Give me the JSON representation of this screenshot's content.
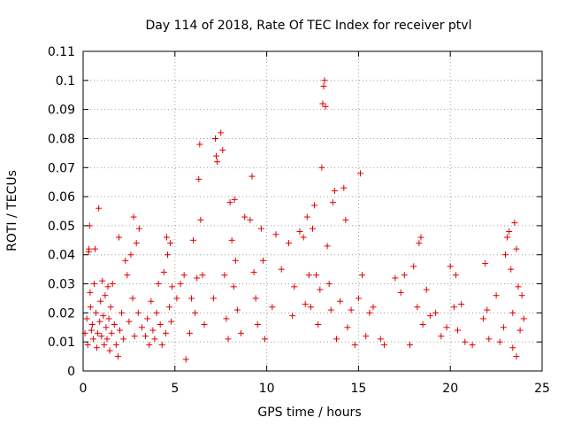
{
  "chart_data": {
    "type": "scatter",
    "title": "Day 114 of 2018, Rate Of TEC Index for receiver ptvl",
    "xlabel": "GPS time / hours",
    "ylabel": "ROTI / TECUs",
    "xlim": [
      0,
      25
    ],
    "ylim": [
      0,
      0.11
    ],
    "xticks": [
      0,
      5,
      10,
      15,
      20,
      25
    ],
    "xtick_labels": [
      "0",
      "5",
      "10",
      "15",
      "20",
      "25"
    ],
    "yticks": [
      0,
      0.01,
      0.02,
      0.03,
      0.04,
      0.05,
      0.06,
      0.07,
      0.08,
      0.09,
      0.1,
      0.11
    ],
    "ytick_labels": [
      "0",
      "0.01",
      "0.02",
      "0.03",
      "0.04",
      "0.05",
      "0.06",
      "0.07",
      "0.08",
      "0.09",
      "0.1",
      "0.11"
    ],
    "grid": true,
    "marker": "+",
    "color": "#e00000",
    "series": [
      {
        "name": "ROTI",
        "points": [
          [
            0.1,
            0.013
          ],
          [
            0.2,
            0.018
          ],
          [
            0.25,
            0.009
          ],
          [
            0.3,
            0.041
          ],
          [
            0.32,
            0.042
          ],
          [
            0.35,
            0.05
          ],
          [
            0.38,
            0.027
          ],
          [
            0.4,
            0.022
          ],
          [
            0.45,
            0.014
          ],
          [
            0.5,
            0.016
          ],
          [
            0.55,
            0.011
          ],
          [
            0.6,
            0.03
          ],
          [
            0.65,
            0.042
          ],
          [
            0.7,
            0.02
          ],
          [
            0.75,
            0.008
          ],
          [
            0.8,
            0.013
          ],
          [
            0.85,
            0.056
          ],
          [
            0.9,
            0.017
          ],
          [
            0.95,
            0.024
          ],
          [
            1.0,
            0.012
          ],
          [
            1.05,
            0.031
          ],
          [
            1.1,
            0.019
          ],
          [
            1.15,
            0.009
          ],
          [
            1.2,
            0.026
          ],
          [
            1.25,
            0.015
          ],
          [
            1.3,
            0.011
          ],
          [
            1.35,
            0.029
          ],
          [
            1.4,
            0.018
          ],
          [
            1.45,
            0.007
          ],
          [
            1.5,
            0.022
          ],
          [
            1.55,
            0.013
          ],
          [
            1.6,
            0.03
          ],
          [
            1.7,
            0.016
          ],
          [
            1.8,
            0.009
          ],
          [
            1.9,
            0.005
          ],
          [
            1.95,
            0.046
          ],
          [
            2.0,
            0.014
          ],
          [
            2.1,
            0.02
          ],
          [
            2.2,
            0.011
          ],
          [
            2.3,
            0.038
          ],
          [
            2.4,
            0.033
          ],
          [
            2.5,
            0.017
          ],
          [
            2.6,
            0.04
          ],
          [
            2.7,
            0.025
          ],
          [
            2.75,
            0.053
          ],
          [
            2.8,
            0.012
          ],
          [
            2.9,
            0.044
          ],
          [
            3.0,
            0.02
          ],
          [
            3.05,
            0.049
          ],
          [
            3.2,
            0.015
          ],
          [
            3.4,
            0.012
          ],
          [
            3.5,
            0.018
          ],
          [
            3.6,
            0.009
          ],
          [
            3.7,
            0.024
          ],
          [
            3.8,
            0.014
          ],
          [
            3.9,
            0.011
          ],
          [
            4.0,
            0.02
          ],
          [
            4.1,
            0.03
          ],
          [
            4.2,
            0.016
          ],
          [
            4.3,
            0.009
          ],
          [
            4.4,
            0.034
          ],
          [
            4.5,
            0.013
          ],
          [
            4.55,
            0.046
          ],
          [
            4.6,
            0.04
          ],
          [
            4.7,
            0.022
          ],
          [
            4.75,
            0.044
          ],
          [
            4.8,
            0.017
          ],
          [
            4.85,
            0.029
          ],
          [
            5.1,
            0.025
          ],
          [
            5.3,
            0.03
          ],
          [
            5.5,
            0.033
          ],
          [
            5.6,
            0.004
          ],
          [
            5.8,
            0.013
          ],
          [
            5.9,
            0.025
          ],
          [
            6.0,
            0.045
          ],
          [
            6.1,
            0.02
          ],
          [
            6.2,
            0.032
          ],
          [
            6.3,
            0.066
          ],
          [
            6.35,
            0.078
          ],
          [
            6.4,
            0.052
          ],
          [
            6.5,
            0.033
          ],
          [
            6.6,
            0.016
          ],
          [
            7.1,
            0.025
          ],
          [
            7.2,
            0.08
          ],
          [
            7.25,
            0.074
          ],
          [
            7.3,
            0.072
          ],
          [
            7.5,
            0.082
          ],
          [
            7.6,
            0.076
          ],
          [
            7.7,
            0.033
          ],
          [
            7.8,
            0.018
          ],
          [
            7.9,
            0.011
          ],
          [
            8.0,
            0.058
          ],
          [
            8.1,
            0.045
          ],
          [
            8.2,
            0.029
          ],
          [
            8.25,
            0.059
          ],
          [
            8.3,
            0.038
          ],
          [
            8.4,
            0.021
          ],
          [
            8.6,
            0.013
          ],
          [
            8.8,
            0.053
          ],
          [
            9.1,
            0.052
          ],
          [
            9.2,
            0.067
          ],
          [
            9.3,
            0.034
          ],
          [
            9.4,
            0.025
          ],
          [
            9.5,
            0.016
          ],
          [
            9.7,
            0.049
          ],
          [
            9.8,
            0.038
          ],
          [
            9.9,
            0.011
          ],
          [
            10.3,
            0.022
          ],
          [
            10.5,
            0.047
          ],
          [
            10.8,
            0.035
          ],
          [
            11.2,
            0.044
          ],
          [
            11.4,
            0.019
          ],
          [
            11.5,
            0.029
          ],
          [
            11.8,
            0.048
          ],
          [
            12.0,
            0.046
          ],
          [
            12.1,
            0.023
          ],
          [
            12.2,
            0.053
          ],
          [
            12.3,
            0.033
          ],
          [
            12.4,
            0.022
          ],
          [
            12.5,
            0.049
          ],
          [
            12.6,
            0.057
          ],
          [
            12.7,
            0.033
          ],
          [
            12.8,
            0.016
          ],
          [
            12.9,
            0.028
          ],
          [
            13.0,
            0.07
          ],
          [
            13.05,
            0.092
          ],
          [
            13.1,
            0.098
          ],
          [
            13.15,
            0.1
          ],
          [
            13.2,
            0.091
          ],
          [
            13.3,
            0.043
          ],
          [
            13.4,
            0.03
          ],
          [
            13.5,
            0.021
          ],
          [
            13.6,
            0.058
          ],
          [
            13.7,
            0.062
          ],
          [
            13.8,
            0.011
          ],
          [
            14.0,
            0.024
          ],
          [
            14.2,
            0.063
          ],
          [
            14.3,
            0.052
          ],
          [
            14.4,
            0.015
          ],
          [
            14.6,
            0.021
          ],
          [
            14.8,
            0.009
          ],
          [
            15.0,
            0.025
          ],
          [
            15.1,
            0.068
          ],
          [
            15.2,
            0.033
          ],
          [
            15.4,
            0.012
          ],
          [
            15.6,
            0.02
          ],
          [
            15.8,
            0.022
          ],
          [
            16.2,
            0.011
          ],
          [
            16.4,
            0.009
          ],
          [
            17.0,
            0.032
          ],
          [
            17.3,
            0.027
          ],
          [
            17.5,
            0.033
          ],
          [
            17.8,
            0.009
          ],
          [
            18.0,
            0.036
          ],
          [
            18.2,
            0.022
          ],
          [
            18.3,
            0.044
          ],
          [
            18.4,
            0.046
          ],
          [
            18.5,
            0.016
          ],
          [
            18.7,
            0.028
          ],
          [
            18.9,
            0.019
          ],
          [
            19.2,
            0.02
          ],
          [
            19.5,
            0.012
          ],
          [
            19.8,
            0.015
          ],
          [
            20.0,
            0.036
          ],
          [
            20.2,
            0.022
          ],
          [
            20.3,
            0.033
          ],
          [
            20.4,
            0.014
          ],
          [
            20.6,
            0.023
          ],
          [
            20.8,
            0.01
          ],
          [
            21.2,
            0.009
          ],
          [
            21.8,
            0.018
          ],
          [
            21.9,
            0.037
          ],
          [
            22.0,
            0.021
          ],
          [
            22.1,
            0.011
          ],
          [
            22.5,
            0.026
          ],
          [
            22.7,
            0.01
          ],
          [
            22.9,
            0.015
          ],
          [
            23.0,
            0.04
          ],
          [
            23.1,
            0.046
          ],
          [
            23.2,
            0.048
          ],
          [
            23.3,
            0.035
          ],
          [
            23.4,
            0.02
          ],
          [
            23.5,
            0.051
          ],
          [
            23.6,
            0.042
          ],
          [
            23.7,
            0.029
          ],
          [
            23.8,
            0.014
          ],
          [
            23.9,
            0.026
          ],
          [
            24.0,
            0.018
          ],
          [
            23.4,
            0.008
          ],
          [
            23.6,
            0.005
          ]
        ]
      }
    ]
  }
}
